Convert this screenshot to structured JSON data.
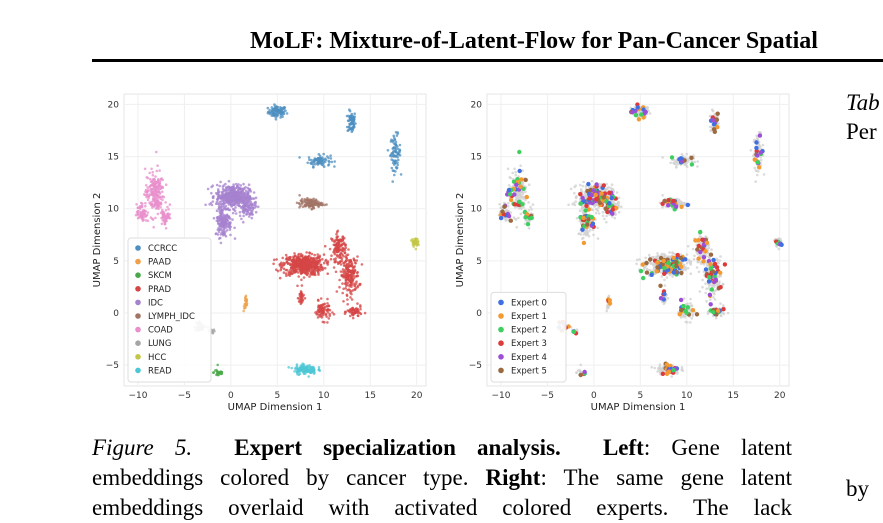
{
  "header": {
    "title": "MoLF: Mixture-of-Latent-Flow for Pan-Cancer Spatial"
  },
  "sidebar": {
    "tab_word": "Tab",
    "per_word": "Per",
    "by_word": "by"
  },
  "caption": {
    "figure_label": "Figure 5.",
    "title": "Expert specialization analysis.",
    "left_label": "Left",
    "left_text": ": Gene latent",
    "line2_a": "embeddings colored by cancer type.",
    "right_label": "Right",
    "line2_b": ": The same gene latent",
    "line3": "embeddings overlaid with activated colored experts. The lack"
  },
  "colors": {
    "CCRCC": "#4c8fc0",
    "PAAD": "#f0a04a",
    "SKCM": "#4aa84a",
    "PRAD": "#d64545",
    "IDC": "#a582cf",
    "LYMPH_IDC": "#a17465",
    "COAD": "#e88fcc",
    "LUNG": "#a5a5a5",
    "HCC": "#c3c647",
    "READ": "#4dc7d4",
    "Expert 0": "#3f6fe0",
    "Expert 1": "#f39a32",
    "Expert 2": "#3fcf5f",
    "Expert 3": "#df3a3a",
    "Expert 4": "#9c4fd6",
    "Expert 5": "#9b6a40"
  },
  "chart_data": [
    {
      "type": "scatter",
      "title": "",
      "xlabel": "UMAP Dimension 1",
      "ylabel": "UMAP Dimension 2",
      "xlim": [
        -11.5,
        21
      ],
      "ylim": [
        -7,
        21
      ],
      "xticks": [
        -10,
        -5,
        0,
        5,
        10,
        15,
        20
      ],
      "yticks": [
        -5,
        0,
        5,
        10,
        15,
        20
      ],
      "grid": true,
      "legend_position": "lower-left",
      "series": [
        {
          "name": "CCRCC",
          "color": "#4c8fc0",
          "clusters": [
            {
              "x": 5.0,
              "y": 19.3,
              "sx": 0.9,
              "sy": 0.5,
              "n": 90
            },
            {
              "x": 13.0,
              "y": 18.3,
              "sx": 0.4,
              "sy": 1.0,
              "n": 70
            },
            {
              "x": 9.5,
              "y": 14.6,
              "sx": 1.1,
              "sy": 0.5,
              "n": 80
            },
            {
              "x": 17.7,
              "y": 15.4,
              "sx": 0.5,
              "sy": 1.5,
              "n": 80
            }
          ]
        },
        {
          "name": "PAAD",
          "color": "#f0a04a",
          "clusters": [
            {
              "x": 1.6,
              "y": 0.9,
              "sx": 0.2,
              "sy": 0.7,
              "n": 25
            }
          ]
        },
        {
          "name": "SKCM",
          "color": "#4aa84a",
          "clusters": [
            {
              "x": -1.3,
              "y": -5.7,
              "sx": 0.5,
              "sy": 0.4,
              "n": 25
            }
          ]
        },
        {
          "name": "PRAD",
          "color": "#d64545",
          "clusters": [
            {
              "x": 7.8,
              "y": 4.6,
              "sx": 2.0,
              "sy": 0.9,
              "n": 500
            },
            {
              "x": 12.8,
              "y": 3.6,
              "sx": 0.9,
              "sy": 1.6,
              "n": 200
            },
            {
              "x": 11.6,
              "y": 6.3,
              "sx": 0.7,
              "sy": 1.2,
              "n": 120
            },
            {
              "x": 9.9,
              "y": 0.2,
              "sx": 0.8,
              "sy": 0.8,
              "n": 80
            },
            {
              "x": 13.3,
              "y": 0.1,
              "sx": 0.7,
              "sy": 0.5,
              "n": 60
            },
            {
              "x": 7.6,
              "y": 1.5,
              "sx": 0.3,
              "sy": 0.8,
              "n": 30
            }
          ]
        },
        {
          "name": "IDC",
          "color": "#a582cf",
          "clusters": [
            {
              "x": 0.2,
              "y": 11.2,
              "sx": 1.6,
              "sy": 1.0,
              "n": 420
            },
            {
              "x": -0.8,
              "y": 8.8,
              "sx": 0.8,
              "sy": 1.4,
              "n": 160
            },
            {
              "x": 1.8,
              "y": 10.2,
              "sx": 0.8,
              "sy": 0.9,
              "n": 100
            }
          ]
        },
        {
          "name": "LYMPH_IDC",
          "color": "#a17465",
          "clusters": [
            {
              "x": 8.6,
              "y": 10.5,
              "sx": 1.1,
              "sy": 0.4,
              "n": 110
            }
          ]
        },
        {
          "name": "COAD",
          "color": "#e88fcc",
          "clusters": [
            {
              "x": -8.2,
              "y": 11.5,
              "sx": 0.9,
              "sy": 2.0,
              "n": 200
            },
            {
              "x": -9.6,
              "y": 9.6,
              "sx": 0.5,
              "sy": 0.8,
              "n": 60
            },
            {
              "x": -7.0,
              "y": 9.3,
              "sx": 0.5,
              "sy": 0.7,
              "n": 50
            }
          ]
        },
        {
          "name": "LUNG",
          "color": "#a5a5a5",
          "clusters": [
            {
              "x": -3.3,
              "y": -1.3,
              "sx": 0.6,
              "sy": 0.4,
              "n": 40
            },
            {
              "x": -2.0,
              "y": -1.8,
              "sx": 0.3,
              "sy": 0.2,
              "n": 15
            }
          ]
        },
        {
          "name": "HCC",
          "color": "#c3c647",
          "clusters": [
            {
              "x": 19.8,
              "y": 6.8,
              "sx": 0.3,
              "sy": 0.4,
              "n": 40
            }
          ]
        },
        {
          "name": "READ",
          "color": "#4dc7d4",
          "clusters": [
            {
              "x": 8.0,
              "y": -5.4,
              "sx": 1.1,
              "sy": 0.4,
              "n": 130
            }
          ]
        }
      ]
    },
    {
      "type": "scatter",
      "title": "",
      "xlabel": "UMAP Dimension 1",
      "ylabel": "UMAP Dimension 2",
      "xlim": [
        -11.5,
        21
      ],
      "ylim": [
        -7,
        21
      ],
      "xticks": [
        -10,
        -5,
        0,
        5,
        10,
        15,
        20
      ],
      "yticks": [
        -5,
        0,
        5,
        10,
        15,
        20
      ],
      "grid": true,
      "legend_position": "lower-left",
      "background_points_color": "#d2d2d2",
      "series": [
        {
          "name": "Expert 0",
          "color": "#3f6fe0"
        },
        {
          "name": "Expert 1",
          "color": "#f39a32"
        },
        {
          "name": "Expert 2",
          "color": "#3fcf5f"
        },
        {
          "name": "Expert 3",
          "color": "#df3a3a"
        },
        {
          "name": "Expert 4",
          "color": "#9c4fd6"
        },
        {
          "name": "Expert 5",
          "color": "#9b6a40"
        }
      ]
    }
  ]
}
